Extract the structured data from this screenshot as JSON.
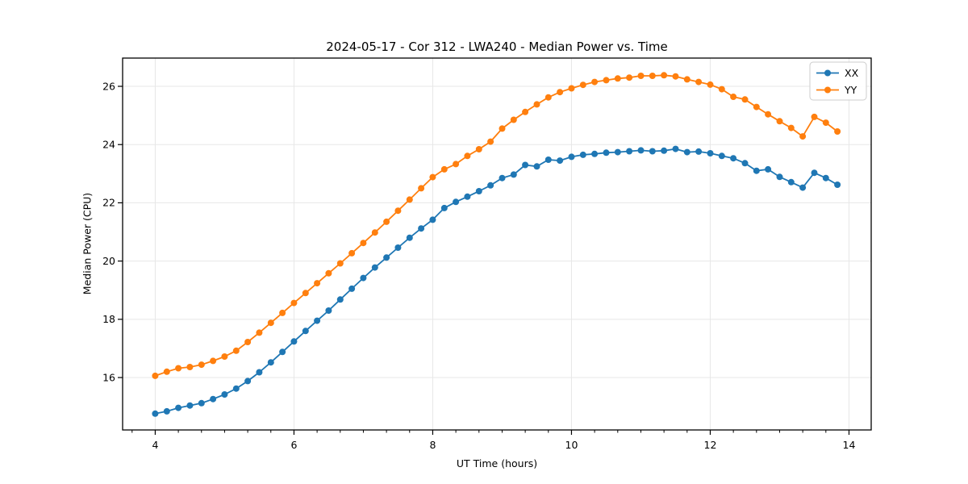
{
  "chart_data": {
    "type": "line",
    "title": "2024-05-17 - Cor 312 - LWA240 - Median Power vs. Time",
    "xlabel": "UT Time (hours)",
    "ylabel": "Median Power (CPU)",
    "xlim": [
      3.53,
      14.32
    ],
    "ylim": [
      14.2,
      26.97
    ],
    "x_major_ticks": [
      4,
      6,
      8,
      10,
      12,
      14
    ],
    "x_minor_tick_step": 0.333,
    "y_major_ticks": [
      16,
      18,
      20,
      22,
      24,
      26
    ],
    "grid": true,
    "grid_color": "#e7e7e7",
    "marker": "circle",
    "legend": {
      "location": "upper right",
      "entries": [
        "XX",
        "YY"
      ]
    },
    "x": [
      4,
      4.167,
      4.333,
      4.5,
      4.667,
      4.833,
      5,
      5.167,
      5.333,
      5.5,
      5.667,
      5.833,
      6,
      6.167,
      6.333,
      6.5,
      6.667,
      6.833,
      7,
      7.167,
      7.333,
      7.5,
      7.667,
      7.833,
      8,
      8.167,
      8.333,
      8.5,
      8.667,
      8.833,
      9,
      9.167,
      9.333,
      9.5,
      9.667,
      9.833,
      10,
      10.167,
      10.333,
      10.5,
      10.667,
      10.833,
      11,
      11.167,
      11.333,
      11.5,
      11.667,
      11.833,
      12,
      12.167,
      12.333,
      12.5,
      12.667,
      12.833,
      13,
      13.167,
      13.333,
      13.5,
      13.667,
      13.833
    ],
    "series": [
      {
        "name": "XX",
        "color": "#1f77b4",
        "values": [
          14.76,
          14.84,
          14.96,
          15.04,
          15.12,
          15.26,
          15.42,
          15.62,
          15.88,
          16.18,
          16.52,
          16.88,
          17.24,
          17.6,
          17.95,
          18.3,
          18.68,
          19.05,
          19.42,
          19.78,
          20.12,
          20.46,
          20.8,
          21.12,
          21.42,
          21.82,
          22.03,
          22.21,
          22.4,
          22.6,
          22.85,
          22.97,
          23.3,
          23.25,
          23.48,
          23.45,
          23.58,
          23.65,
          23.68,
          23.72,
          23.74,
          23.77,
          23.8,
          23.77,
          23.79,
          23.85,
          23.74,
          23.76,
          23.7,
          23.61,
          23.53,
          23.36,
          23.1,
          23.15,
          22.89,
          22.71,
          22.52,
          23.03,
          22.85,
          22.62
        ]
      },
      {
        "name": "YY",
        "color": "#ff7f0e",
        "values": [
          16.06,
          16.2,
          16.32,
          16.36,
          16.44,
          16.57,
          16.72,
          16.92,
          17.22,
          17.54,
          17.88,
          18.22,
          18.56,
          18.9,
          19.24,
          19.58,
          19.92,
          20.27,
          20.62,
          20.98,
          21.35,
          21.73,
          22.11,
          22.5,
          22.88,
          23.15,
          23.33,
          23.61,
          23.84,
          24.1,
          24.55,
          24.85,
          25.12,
          25.38,
          25.62,
          25.8,
          25.93,
          26.05,
          26.15,
          26.21,
          26.27,
          26.3,
          26.36,
          26.36,
          26.38,
          26.34,
          26.24,
          26.15,
          26.06,
          25.9,
          25.64,
          25.55,
          25.29,
          25.04,
          24.8,
          24.57,
          24.28,
          24.95,
          24.75,
          24.45
        ]
      }
    ]
  }
}
